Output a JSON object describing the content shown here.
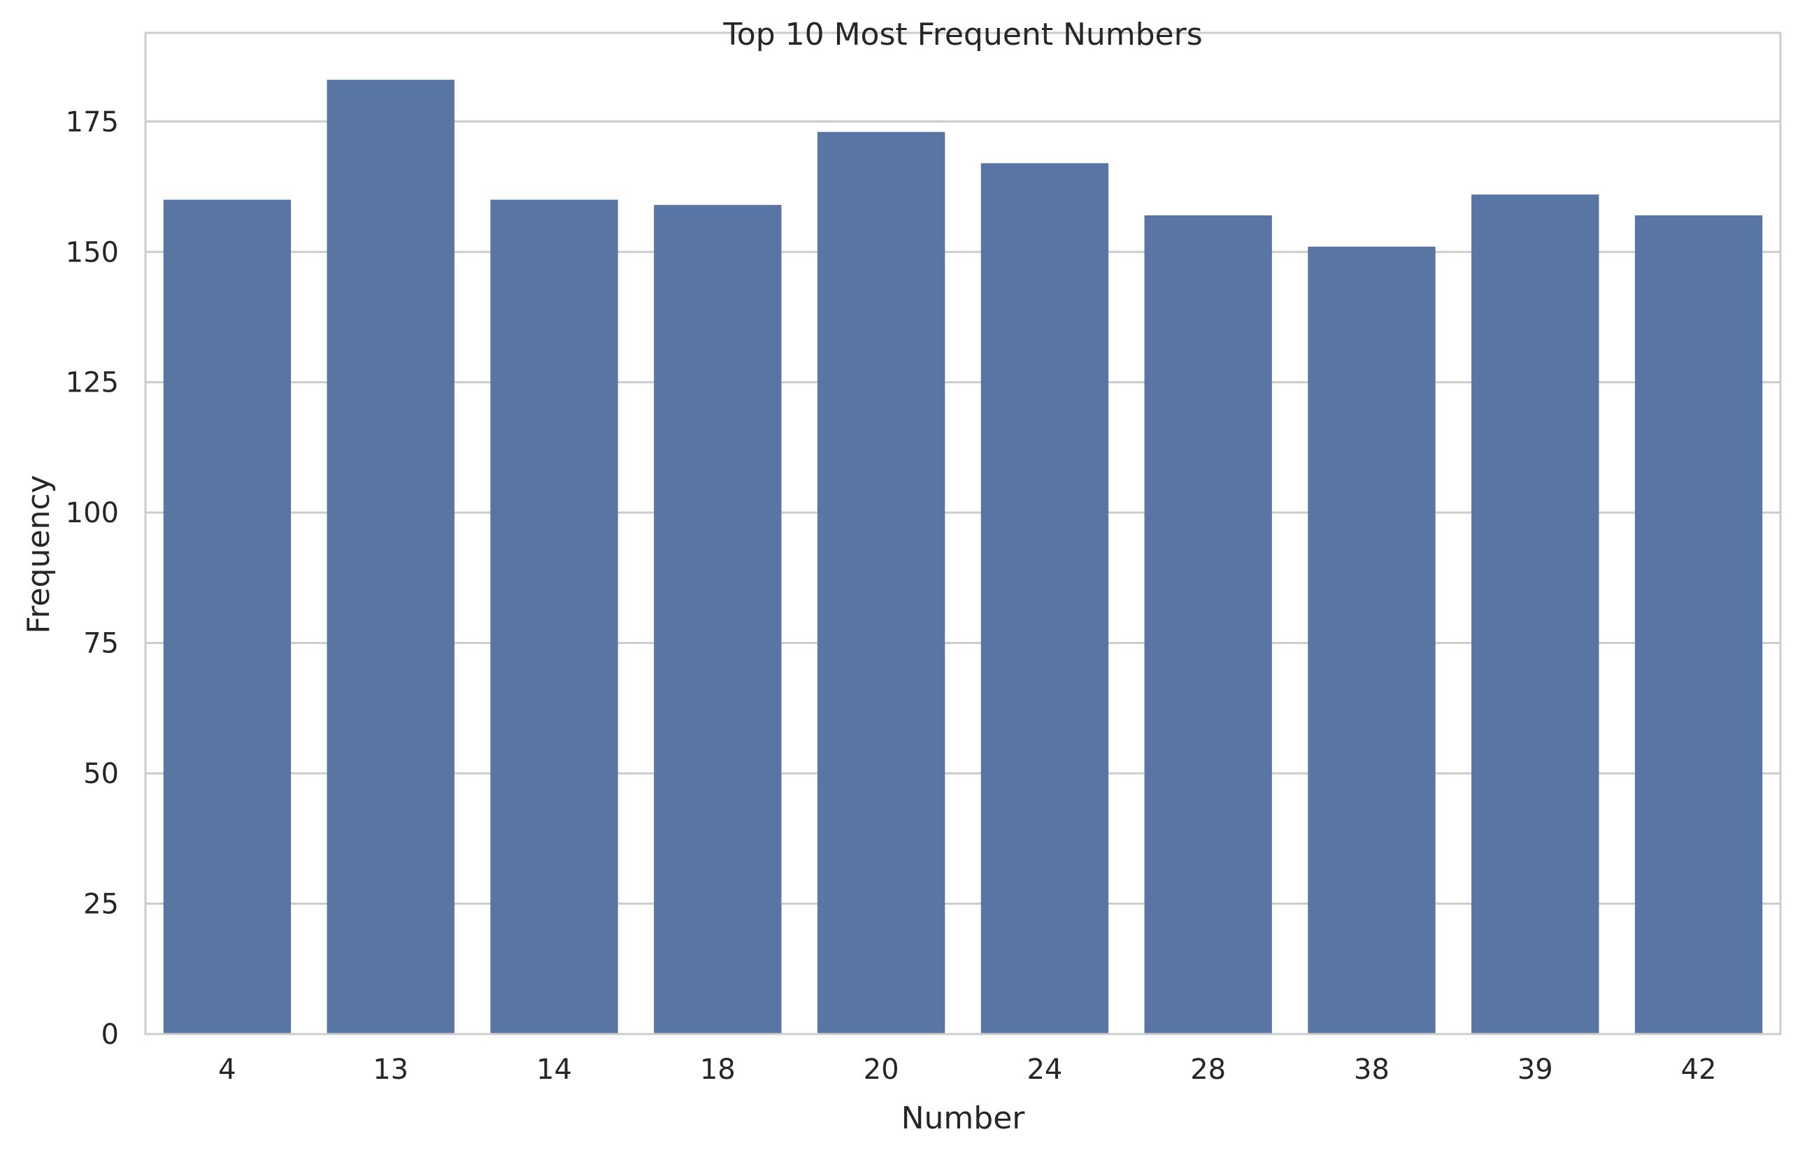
{
  "chart_data": {
    "type": "bar",
    "title": "Top 10 Most Frequent Numbers",
    "xlabel": "Number",
    "ylabel": "Frequency",
    "categories": [
      "4",
      "13",
      "14",
      "18",
      "20",
      "24",
      "28",
      "38",
      "39",
      "42"
    ],
    "values": [
      160,
      183,
      160,
      159,
      173,
      167,
      157,
      151,
      161,
      157
    ],
    "ylim": [
      0,
      192
    ],
    "yticks": [
      0,
      25,
      50,
      75,
      100,
      125,
      150,
      175
    ],
    "grid": "horizontal",
    "legend": "none",
    "colors": {
      "bar": "#5975a4",
      "grid": "#cccccc",
      "spine": "#cccccc",
      "text": "#262626",
      "background": "#ffffff"
    }
  }
}
